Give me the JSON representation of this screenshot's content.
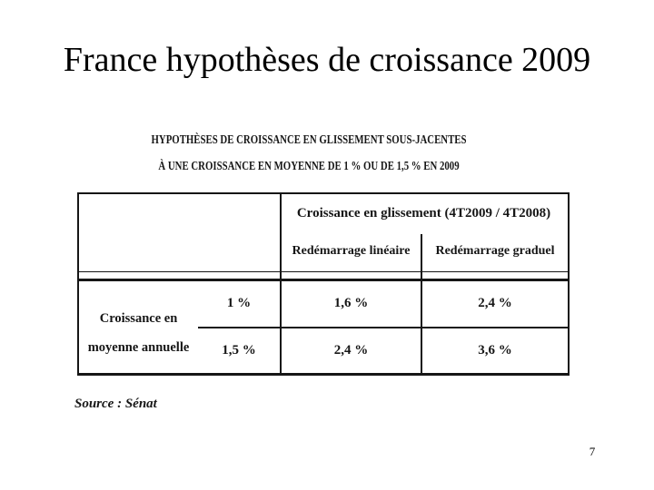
{
  "colors": {
    "background": "#ffffff",
    "ink": "#161616",
    "title_text": "#000000"
  },
  "slide": {
    "title": "France hypothèses de croissance 2009",
    "page_number": "7"
  },
  "figure": {
    "caption": {
      "line1": "HYPOTHÈSES DE CROISSANCE EN GLISSEMENT SOUS-JACENTES",
      "line2": "À UNE CROISSANCE EN MOYENNE DE 1 % OU DE 1,5 % EN 2009"
    },
    "table": {
      "group_header": "Croissance en glissement (4T2009 / 4T2008)",
      "columns": [
        "Redémarrage linéaire",
        "Redémarrage graduel"
      ],
      "row_group_label": {
        "line1": "Croissance en",
        "line2": "moyenne annuelle"
      },
      "rows": [
        {
          "average_growth": "1 %",
          "linear": "1,6 %",
          "gradual": "2,4 %"
        },
        {
          "average_growth": "1,5 %",
          "linear": "2,4 %",
          "gradual": "3,6 %"
        }
      ]
    },
    "source": "Source : Sénat"
  },
  "chart_data": {
    "type": "table",
    "title": "HYPOTHÈSES DE CROISSANCE EN GLISSEMENT SOUS-JACENTES À UNE CROISSANCE EN MOYENNE DE 1 % OU DE 1,5 % EN 2009",
    "columns": [
      "Croissance en moyenne annuelle",
      "Redémarrage linéaire",
      "Redémarrage graduel"
    ],
    "rows": [
      [
        "1 %",
        "1,6 %",
        "2,4 %"
      ],
      [
        "1,5 %",
        "2,4 %",
        "3,6 %"
      ]
    ],
    "group_header": "Croissance en glissement (4T2009 / 4T2008)",
    "source": "Source : Sénat"
  }
}
